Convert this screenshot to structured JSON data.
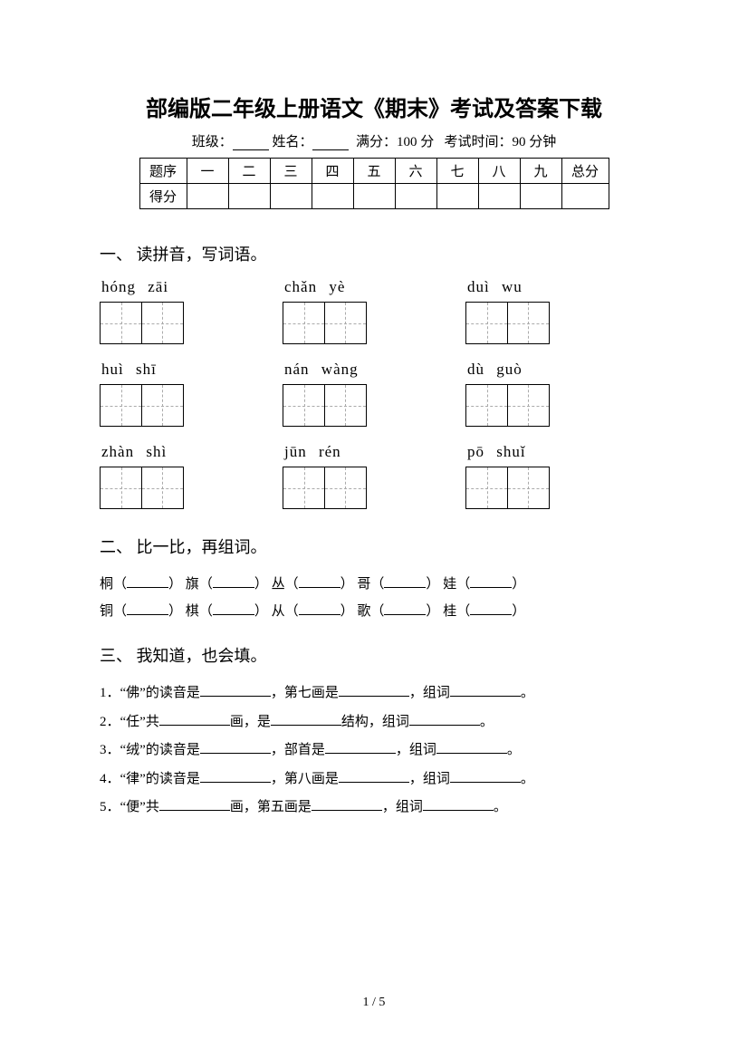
{
  "title": "部编版二年级上册语文《期末》考试及答案下载",
  "info": {
    "class_label": "班级：",
    "name_label": "姓名：",
    "full_label": "满分：",
    "full_value": "100 分",
    "time_label": "考试时间：",
    "time_value": "90 分钟"
  },
  "score_table": {
    "row_label": "题序",
    "score_label": "得分",
    "cols": [
      "一",
      "二",
      "三",
      "四",
      "五",
      "六",
      "七",
      "八",
      "九"
    ],
    "total": "总分"
  },
  "q1": {
    "heading": "一、 读拼音，写词语。",
    "items": [
      "hóng  zāi",
      "chǎn  yè",
      "duì  wu",
      "huì  shī",
      "nán  wàng",
      "dù  guò",
      "zhàn  shì",
      "jūn  rén",
      "pō  shuǐ"
    ]
  },
  "q2": {
    "heading": "二、 比一比，再组词。",
    "row1": [
      "桐",
      "旗",
      "丛",
      "哥",
      "娃"
    ],
    "row2": [
      "铜",
      "棋",
      "从",
      "歌",
      "桂"
    ]
  },
  "q3": {
    "heading": "三、 我知道，也会填。",
    "items": [
      {
        "n": "1．",
        "a": "“佛”的读音是",
        "b": "，第七画是",
        "c": "，组词",
        "d": "。"
      },
      {
        "n": "2．",
        "a": "“任”共",
        "b": "画，是",
        "c": "结构，组词",
        "d": "。"
      },
      {
        "n": "3．",
        "a": "“绒”的读音是",
        "b": "，部首是",
        "c": "，组词",
        "d": "。"
      },
      {
        "n": "4．",
        "a": "“律”的读音是",
        "b": "，第八画是",
        "c": "，组词",
        "d": "。"
      },
      {
        "n": "5．",
        "a": "“便”共",
        "b": "画，第五画是",
        "c": "，组词",
        "d": "。"
      }
    ]
  },
  "footer": "1 / 5"
}
